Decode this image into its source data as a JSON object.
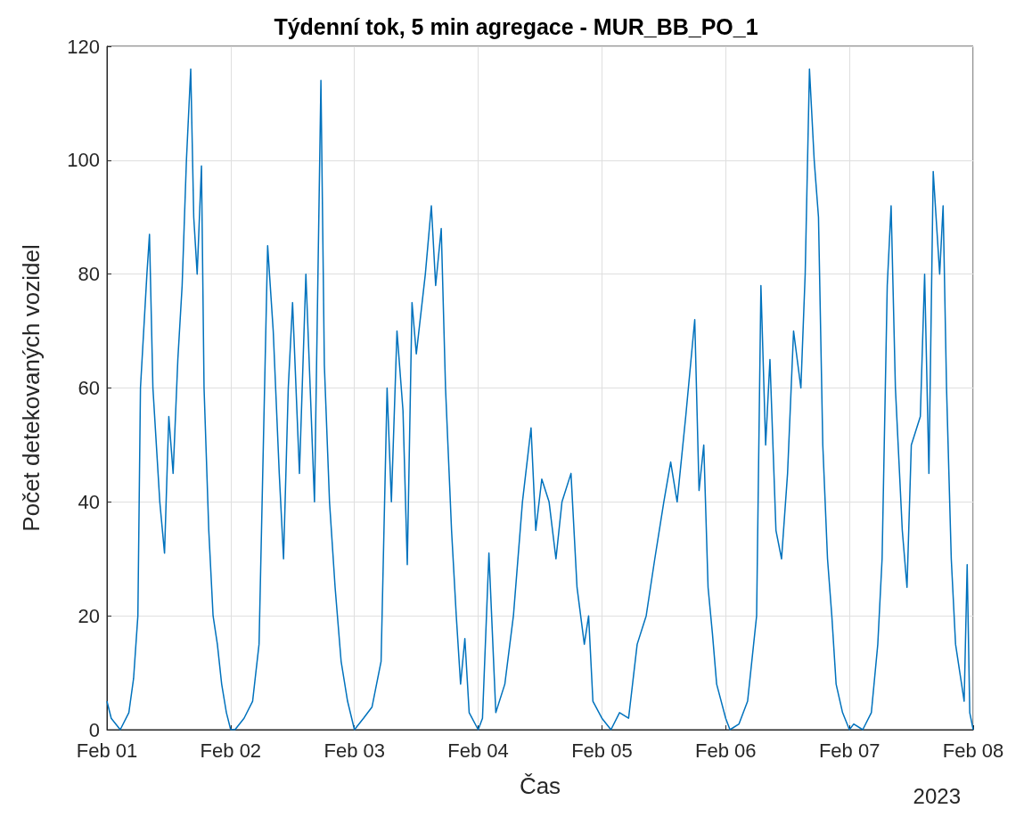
{
  "chart_data": {
    "type": "line",
    "title": "Týdenní tok, 5 min agregace - MUR_BB_PO_1",
    "xlabel": "Čas",
    "ylabel": "Počet detekovaných vozidel",
    "annotations": [
      "2023"
    ],
    "x": [
      "2023-02-01T00:00",
      "2023-02-01T00:50",
      "2023-02-01T02:35",
      "2023-02-01T04:15",
      "2023-02-01T05:10",
      "2023-02-01T06:00",
      "2023-02-01T06:30",
      "2023-02-01T07:45",
      "2023-02-01T08:15",
      "2023-02-01T08:55",
      "2023-02-01T10:15",
      "2023-02-01T11:10",
      "2023-02-01T12:00",
      "2023-02-01T12:50",
      "2023-02-01T13:45",
      "2023-02-01T14:35",
      "2023-02-01T15:25",
      "2023-02-01T16:15",
      "2023-02-01T16:50",
      "2023-02-01T17:30",
      "2023-02-01T18:20",
      "2023-02-01T18:50",
      "2023-02-01T19:45",
      "2023-02-01T20:35",
      "2023-02-01T21:25",
      "2023-02-01T22:15",
      "2023-02-01T23:10",
      "2023-02-02T00:00",
      "2023-02-02T00:50",
      "2023-02-02T02:35",
      "2023-02-02T04:15",
      "2023-02-02T05:30",
      "2023-02-02T06:20",
      "2023-02-02T07:10",
      "2023-02-02T08:15",
      "2023-02-02T09:25",
      "2023-02-02T10:15",
      "2023-02-02T11:10",
      "2023-02-02T12:00",
      "2023-02-02T13:20",
      "2023-02-02T14:35",
      "2023-02-02T15:25",
      "2023-02-02T16:15",
      "2023-02-02T17:30",
      "2023-02-02T18:10",
      "2023-02-02T19:10",
      "2023-02-02T20:15",
      "2023-02-02T21:25",
      "2023-02-02T22:40",
      "2023-02-03T00:00",
      "2023-02-03T01:45",
      "2023-02-03T03:25",
      "2023-02-03T05:10",
      "2023-02-03T06:20",
      "2023-02-03T07:10",
      "2023-02-03T08:15",
      "2023-02-03T09:25",
      "2023-02-03T10:15",
      "2023-02-03T11:10",
      "2023-02-03T12:00",
      "2023-02-03T13:45",
      "2023-02-03T14:55",
      "2023-02-03T15:45",
      "2023-02-03T16:50",
      "2023-02-03T17:40",
      "2023-02-03T18:50",
      "2023-02-03T19:45",
      "2023-02-03T20:35",
      "2023-02-03T21:25",
      "2023-02-03T22:15",
      "2023-02-04T00:00",
      "2023-02-04T00:50",
      "2023-02-04T02:05",
      "2023-02-04T03:25",
      "2023-02-04T05:10",
      "2023-02-04T06:50",
      "2023-02-04T08:35",
      "2023-02-04T10:15",
      "2023-02-04T11:10",
      "2023-02-04T12:20",
      "2023-02-04T13:45",
      "2023-02-04T15:05",
      "2023-02-04T16:15",
      "2023-02-04T18:00",
      "2023-02-04T19:10",
      "2023-02-04T20:35",
      "2023-02-04T21:25",
      "2023-02-04T22:15",
      "2023-02-05T00:00",
      "2023-02-05T01:45",
      "2023-02-05T03:25",
      "2023-02-05T05:10",
      "2023-02-05T06:50",
      "2023-02-05T08:35",
      "2023-02-05T10:15",
      "2023-02-05T12:00",
      "2023-02-05T13:20",
      "2023-02-05T14:35",
      "2023-02-05T16:15",
      "2023-02-05T18:00",
      "2023-02-05T18:50",
      "2023-02-05T19:45",
      "2023-02-05T20:35",
      "2023-02-05T21:25",
      "2023-02-05T22:15",
      "2023-02-06T00:00",
      "2023-02-06T00:50",
      "2023-02-06T02:35",
      "2023-02-06T04:15",
      "2023-02-06T06:00",
      "2023-02-06T06:50",
      "2023-02-06T07:45",
      "2023-02-06T08:35",
      "2023-02-06T09:45",
      "2023-02-06T10:50",
      "2023-02-06T12:00",
      "2023-02-06T13:10",
      "2023-02-06T14:35",
      "2023-02-06T15:25",
      "2023-02-06T16:15",
      "2023-02-06T17:10",
      "2023-02-06T18:00",
      "2023-02-06T18:50",
      "2023-02-06T19:45",
      "2023-02-06T20:35",
      "2023-02-06T21:25",
      "2023-02-06T22:40",
      "2023-02-07T00:00",
      "2023-02-07T00:50",
      "2023-02-07T02:35",
      "2023-02-07T04:15",
      "2023-02-07T05:30",
      "2023-02-07T06:20",
      "2023-02-07T07:20",
      "2023-02-07T08:05",
      "2023-02-07T08:55",
      "2023-02-07T10:15",
      "2023-02-07T11:10",
      "2023-02-07T12:00",
      "2023-02-07T13:45",
      "2023-02-07T14:35",
      "2023-02-07T15:25",
      "2023-02-07T16:15",
      "2023-02-07T17:30",
      "2023-02-07T18:10",
      "2023-02-07T18:50",
      "2023-02-07T19:45",
      "2023-02-07T20:35",
      "2023-02-07T21:25",
      "2023-02-07T22:15",
      "2023-02-07T22:50",
      "2023-02-07T23:20",
      "2023-02-08T00:00"
    ],
    "series": [
      {
        "color": "#0072bd",
        "values": [
          5,
          2,
          0,
          3,
          9,
          20,
          60,
          80,
          87,
          60,
          40,
          31,
          55,
          45,
          65,
          78,
          100,
          116,
          90,
          80,
          99,
          60,
          35,
          20,
          15,
          8,
          3,
          0,
          0,
          2,
          5,
          15,
          50,
          85,
          70,
          45,
          30,
          60,
          75,
          45,
          80,
          60,
          40,
          114,
          64,
          40,
          25,
          12,
          5,
          0,
          2,
          4,
          12,
          60,
          40,
          70,
          56,
          29,
          75,
          66,
          80,
          92,
          78,
          88,
          60,
          35,
          20,
          8,
          16,
          3,
          0,
          2,
          31,
          3,
          8,
          20,
          40,
          53,
          35,
          44,
          40,
          30,
          40,
          45,
          25,
          15,
          20,
          5,
          2,
          0,
          3,
          2,
          15,
          20,
          30,
          40,
          47,
          40,
          55,
          72,
          42,
          50,
          25,
          17,
          8,
          2,
          0,
          1,
          5,
          20,
          78,
          50,
          65,
          35,
          30,
          45,
          70,
          60,
          80,
          116,
          100,
          90,
          50,
          30,
          20,
          8,
          3,
          0,
          1,
          0,
          3,
          15,
          30,
          78,
          92,
          60,
          35,
          25,
          50,
          55,
          80,
          45,
          98,
          80,
          92,
          60,
          30,
          15,
          10,
          5,
          29,
          3,
          0
        ]
      }
    ],
    "xlim": [
      "2023-02-01",
      "2023-02-08"
    ],
    "xticks": [
      {
        "value": "2023-02-01",
        "label": "Feb 01"
      },
      {
        "value": "2023-02-02",
        "label": "Feb 02"
      },
      {
        "value": "2023-02-03",
        "label": "Feb 03"
      },
      {
        "value": "2023-02-04",
        "label": "Feb 04"
      },
      {
        "value": "2023-02-05",
        "label": "Feb 05"
      },
      {
        "value": "2023-02-06",
        "label": "Feb 06"
      },
      {
        "value": "2023-02-07",
        "label": "Feb 07"
      },
      {
        "value": "2023-02-08",
        "label": "Feb 08"
      }
    ],
    "ylim": [
      0,
      120
    ],
    "yticks": [
      0,
      20,
      40,
      60,
      80,
      100,
      120
    ],
    "grid": true,
    "line_style": "solid",
    "marker": "none"
  }
}
